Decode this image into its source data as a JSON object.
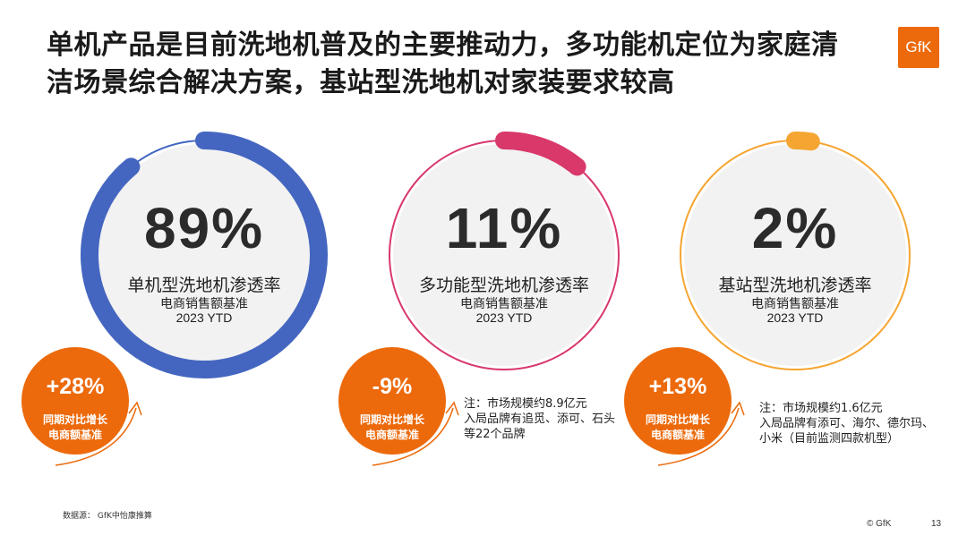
{
  "title": "单机产品是目前洗地机普及的主要推动力，多功能机定位为家庭清洁场景综合解决方案，基站型洗地机对家装要求较高",
  "logo_text": "GfK",
  "colors": {
    "accent_orange": "#ec6a0c",
    "circle_bg": "#f2f2f2",
    "blue": "#4466c0",
    "pink": "#d8386a",
    "yellow": "#f5a531"
  },
  "chart_data": [
    {
      "type": "pie",
      "title": "单机型洗地机渗透率",
      "value": 89,
      "value_label": "89%",
      "subtitle": "电商销售额基准",
      "period": "2023 YTD",
      "color": "#4466c0",
      "growth": {
        "value": "+28%",
        "line1": "同期对比增长",
        "line2": "电商额基准"
      },
      "note": ""
    },
    {
      "type": "pie",
      "title": "多功能型洗地机渗透率",
      "value": 11,
      "value_label": "11%",
      "subtitle": "电商销售额基准",
      "period": "2023 YTD",
      "color": "#d8386a",
      "growth": {
        "value": "-9%",
        "line1": "同期对比增长",
        "line2": "电商额基准"
      },
      "note": "注：市场规模约8.9亿元\n入局品牌有追觅、添可、石头\n等22个品牌"
    },
    {
      "type": "pie",
      "title": "基站型洗地机渗透率",
      "value": 2,
      "value_label": "2%",
      "subtitle": "电商销售额基准",
      "period": "2023 YTD",
      "color": "#f5a531",
      "growth": {
        "value": "+13%",
        "line1": "同期对比增长",
        "line2": "电商额基准"
      },
      "note": "注：市场规模约1.6亿元\n入局品牌有添可、海尔、德尔玛、\n小米（目前监测四款机型）"
    }
  ],
  "footer": {
    "source": "数据源：  GfK中怡康推算",
    "copyright": "© GfK",
    "page": "13"
  }
}
